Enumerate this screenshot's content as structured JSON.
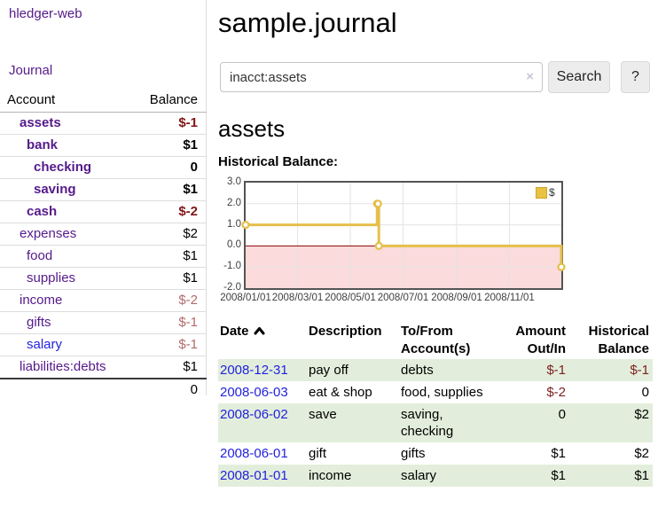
{
  "sidebar": {
    "brand": "hledger-web",
    "journal_link": "Journal",
    "accounts_table": {
      "col_account": "Account",
      "col_balance": "Balance",
      "rows": [
        {
          "name": "assets",
          "level": 1,
          "matched": true,
          "link": "purple",
          "balance": "$-1"
        },
        {
          "name": "bank",
          "level": 2,
          "matched": true,
          "link": "purple",
          "balance": "$1"
        },
        {
          "name": "checking",
          "level": 3,
          "matched": true,
          "link": "purple",
          "balance": "0"
        },
        {
          "name": "saving",
          "level": 3,
          "matched": true,
          "link": "purple",
          "balance": "$1"
        },
        {
          "name": "cash",
          "level": 2,
          "matched": true,
          "link": "purple",
          "balance": "$-2"
        },
        {
          "name": "expenses",
          "level": 1,
          "matched": false,
          "link": "purple",
          "balance": "$2"
        },
        {
          "name": "food",
          "level": 2,
          "matched": false,
          "link": "purple",
          "balance": "$1"
        },
        {
          "name": "supplies",
          "level": 2,
          "matched": false,
          "link": "purple",
          "balance": "$1"
        },
        {
          "name": "income",
          "level": 1,
          "matched": false,
          "link": "purple",
          "balance": "$-2"
        },
        {
          "name": "gifts",
          "level": 2,
          "matched": false,
          "link": "purple",
          "balance": "$-1"
        },
        {
          "name": "salary",
          "level": 2,
          "matched": false,
          "link": "blue",
          "balance": "$-1"
        },
        {
          "name": "liabilities:debts",
          "level": 1,
          "matched": false,
          "link": "purple",
          "balance": "$1"
        }
      ],
      "total": "0"
    }
  },
  "header": {
    "title": "sample.journal"
  },
  "search": {
    "value": "inacct:assets",
    "clear_icon": "×",
    "search_button": "Search",
    "help_button": "?"
  },
  "register": {
    "heading": "assets",
    "chart_label": "Historical Balance:",
    "table": {
      "headers": {
        "date": "Date",
        "description": "Description",
        "accounts": "To/From Account(s)",
        "amount": "Amount Out/In",
        "balance": "Historical Balance"
      },
      "rows": [
        {
          "date": "2008-12-31",
          "description": "pay off",
          "accounts": "debts",
          "amount": "$-1",
          "balance": "$-1"
        },
        {
          "date": "2008-06-03",
          "description": "eat & shop",
          "accounts": "food, supplies",
          "amount": "$-2",
          "balance": "0"
        },
        {
          "date": "2008-06-02",
          "description": "save",
          "accounts": "saving, checking",
          "amount": "0",
          "balance": "$2"
        },
        {
          "date": "2008-06-01",
          "description": "gift",
          "accounts": "gifts",
          "amount": "$1",
          "balance": "$2"
        },
        {
          "date": "2008-01-01",
          "description": "income",
          "accounts": "salary",
          "amount": "$1",
          "balance": "$1"
        }
      ]
    }
  },
  "chart_data": {
    "type": "line",
    "title": "Historical Balance",
    "series": [
      {
        "name": "$",
        "step": true,
        "color": "#e4bf4a",
        "points": [
          [
            "2008-01-01",
            1
          ],
          [
            "2008-06-01",
            2
          ],
          [
            "2008-06-02",
            2
          ],
          [
            "2008-06-03",
            0
          ],
          [
            "2008-12-31",
            -1
          ]
        ]
      }
    ],
    "x_range": [
      "2008-01-01",
      "2008-12-31"
    ],
    "x_ticks": [
      "2008/01/01",
      "2008/03/01",
      "2008/05/01",
      "2008/07/01",
      "2008/09/01",
      "2008/11/01"
    ],
    "y_ticks": [
      "3.0",
      "2.0",
      "1.0",
      "0.0",
      "-1.0",
      "-2.0"
    ],
    "ylim": [
      -2,
      3
    ],
    "grid": true,
    "grid_color": "#e3e3e3",
    "negative_fill": "#fbdbdb",
    "zero_line_color": "#8b0000",
    "legend": {
      "label": "$",
      "position": "top-right"
    }
  }
}
